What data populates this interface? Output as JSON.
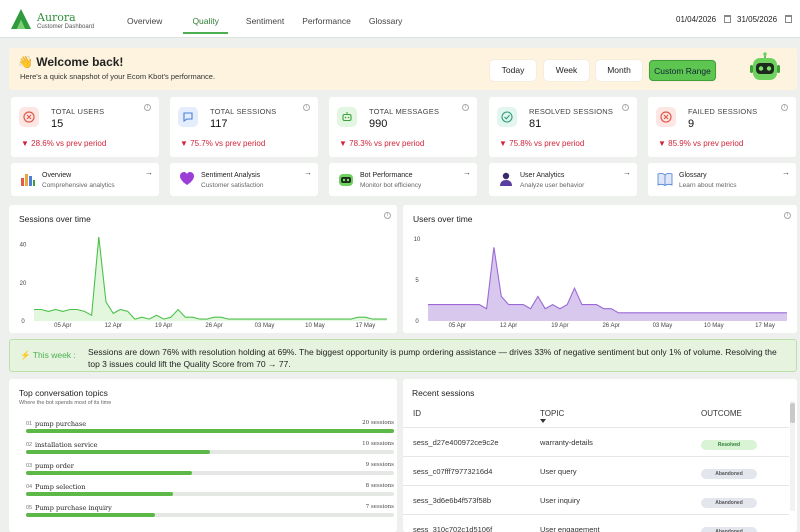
{
  "brand": {
    "title": "Aurora",
    "subtitle": "Customer Dashboard"
  },
  "nav": [
    {
      "label": "Overview"
    },
    {
      "label": "Quality"
    },
    {
      "label": "Sentiment"
    },
    {
      "label": "Performance"
    },
    {
      "label": "Glossary"
    }
  ],
  "dates": {
    "start": "01/04/2026",
    "end": "31/05/2026"
  },
  "welcome": {
    "title": "👋 Welcome back!",
    "subtitle": "Here's a quick snapshot of your Ecom Kbot's performance."
  },
  "range_buttons": [
    {
      "label": "Today"
    },
    {
      "label": "Week"
    },
    {
      "label": "Month"
    },
    {
      "label": "Custom Range"
    }
  ],
  "stats": [
    {
      "label": "TOTAL USERS",
      "value": "15",
      "delta": "▼ 28.6% vs prev period",
      "icon": "x-circle-icon",
      "color": "#fde7e4"
    },
    {
      "label": "TOTAL SESSIONS",
      "value": "117",
      "delta": "▼ 75.7% vs prev period",
      "icon": "chat-icon",
      "color": "#e4edfb"
    },
    {
      "label": "TOTAL MESSAGES",
      "value": "990",
      "delta": "▼ 78.3% vs prev period",
      "icon": "robot-icon",
      "color": "#e3f6e1"
    },
    {
      "label": "RESOLVED SESSIONS",
      "value": "81",
      "delta": "▼ 75.8% vs prev period",
      "icon": "check-circle-icon",
      "color": "#e2f5ee"
    },
    {
      "label": "FAILED SESSIONS",
      "value": "9",
      "delta": "▼ 85.9% vs prev period",
      "icon": "x-circle-icon",
      "color": "#fde7e4"
    }
  ],
  "links": [
    {
      "title": "Overview",
      "subtitle": "Comprehensive analytics"
    },
    {
      "title": "Sentiment Analysis",
      "subtitle": "Customer satisfaction"
    },
    {
      "title": "Bot Performance",
      "subtitle": "Monitor bot efficiency"
    },
    {
      "title": "User Analytics",
      "subtitle": "Analyze user behavior"
    },
    {
      "title": "Glossary",
      "subtitle": "Learn about metrics"
    }
  ],
  "arrow": "→",
  "chart_data": [
    {
      "type": "area",
      "title": "Sessions over time",
      "ylim": [
        0,
        45
      ],
      "yticks": [
        0,
        20,
        40
      ],
      "xticks": [
        "05 Apr",
        "12 Apr",
        "19 Apr",
        "26 Apr",
        "03 May",
        "10 May",
        "17 May"
      ],
      "color": "#4cc14a",
      "fill": "#e3f6de",
      "x": [
        "01 Apr",
        "02 Apr",
        "03 Apr",
        "04 Apr",
        "05 Apr",
        "06 Apr",
        "07 Apr",
        "08 Apr",
        "09 Apr",
        "10 Apr",
        "11 Apr",
        "12 Apr",
        "13 Apr",
        "14 Apr",
        "15 Apr",
        "16 Apr",
        "17 Apr",
        "18 Apr",
        "19 Apr",
        "20 Apr",
        "21 Apr",
        "22 Apr",
        "23 Apr",
        "24 Apr",
        "25 Apr",
        "26 Apr",
        "27 Apr",
        "28 Apr",
        "29 Apr",
        "30 Apr",
        "01 May",
        "02 May",
        "03 May",
        "04 May",
        "05 May",
        "06 May",
        "07 May",
        "08 May",
        "09 May",
        "10 May",
        "11 May",
        "12 May",
        "13 May",
        "14 May",
        "15 May",
        "16 May",
        "17 May",
        "18 May",
        "19 May",
        "20 May"
      ],
      "values": [
        6,
        6,
        5,
        6,
        5,
        6,
        6,
        5,
        3,
        44,
        10,
        4,
        6,
        5,
        1,
        2,
        1,
        3,
        1,
        2,
        6,
        2,
        2,
        1,
        1,
        2,
        2,
        1,
        1,
        1,
        1,
        1,
        1,
        1,
        1,
        1,
        1,
        1,
        1,
        1,
        1,
        1,
        1,
        1,
        1,
        2,
        2,
        1,
        1,
        1
      ]
    },
    {
      "type": "area",
      "title": "Users over time",
      "ylim": [
        0,
        10.5
      ],
      "yticks": [
        0,
        5,
        10
      ],
      "xticks": [
        "05 Apr",
        "12 Apr",
        "19 Apr",
        "26 Apr",
        "03 May",
        "10 May",
        "17 May"
      ],
      "color": "#9a69d6",
      "fill": "#d9c8ee",
      "x": [
        "01 Apr",
        "02 Apr",
        "03 Apr",
        "04 Apr",
        "05 Apr",
        "06 Apr",
        "07 Apr",
        "08 Apr",
        "09 Apr",
        "10 Apr",
        "11 Apr",
        "12 Apr",
        "13 Apr",
        "14 Apr",
        "15 Apr",
        "16 Apr",
        "17 Apr",
        "18 Apr",
        "19 Apr",
        "20 Apr",
        "21 Apr",
        "22 Apr",
        "23 Apr",
        "24 Apr",
        "25 Apr",
        "26 Apr",
        "27 Apr",
        "28 Apr",
        "29 Apr",
        "30 Apr",
        "01 May",
        "02 May",
        "03 May",
        "04 May",
        "05 May",
        "06 May",
        "07 May",
        "08 May",
        "09 May",
        "10 May",
        "11 May",
        "12 May",
        "13 May",
        "14 May",
        "15 May",
        "16 May",
        "17 May",
        "18 May",
        "19 May",
        "20 May"
      ],
      "values": [
        2,
        2,
        2,
        2,
        2,
        2,
        2,
        2,
        1.5,
        9,
        3,
        2,
        2,
        2,
        1.5,
        3,
        1.5,
        2,
        1.5,
        2,
        4,
        2,
        2,
        2,
        1.5,
        1.5,
        1,
        1,
        1,
        1,
        1,
        1,
        1,
        1,
        1,
        1,
        1,
        1,
        1,
        1,
        1,
        1,
        1,
        1,
        1,
        1,
        1,
        1,
        1,
        1
      ]
    }
  ],
  "insight": {
    "label": "⚡ This week :",
    "text": "Sessions are down 76% with resolution holding at 69%. The biggest opportunity is pump ordering assistance — drives 33% of negative sentiment but only 1% of volume. Resolving the top 3 issues could lift the Quality Score from 70 → 77."
  },
  "topics": {
    "title": "Top conversation topics",
    "subtitle": "Where the bot spends most of its time",
    "items": [
      {
        "num": "01",
        "name": "pump purchase",
        "count": "20 sessions",
        "value": 20
      },
      {
        "num": "02",
        "name": "installation service",
        "count": "10 sessions",
        "value": 10
      },
      {
        "num": "03",
        "name": "pump order",
        "count": "9 sessions",
        "value": 9
      },
      {
        "num": "04",
        "name": "Pump selection",
        "count": "8 sessions",
        "value": 8
      },
      {
        "num": "05",
        "name": "Pump purchase inquiry",
        "count": "7 sessions",
        "value": 7
      }
    ]
  },
  "recent": {
    "title": "Recent sessions",
    "columns": [
      "ID",
      "TOPIC",
      "OUTCOME"
    ],
    "rows": [
      {
        "id": "sess_d27e400972ce9c2e",
        "topic": "warranty-details",
        "outcome": "Resolved",
        "status": "resolved"
      },
      {
        "id": "sess_c07fff79773216d4",
        "topic": "User query",
        "outcome": "Abandoned",
        "status": "abandoned"
      },
      {
        "id": "sess_3d6e6b4f573f58b",
        "topic": "User inquiry",
        "outcome": "Abandoned",
        "status": "abandoned"
      },
      {
        "id": "sess_310c702c1d5106f",
        "topic": "User engagement",
        "outcome": "Abandoned",
        "status": "abandoned"
      }
    ]
  }
}
